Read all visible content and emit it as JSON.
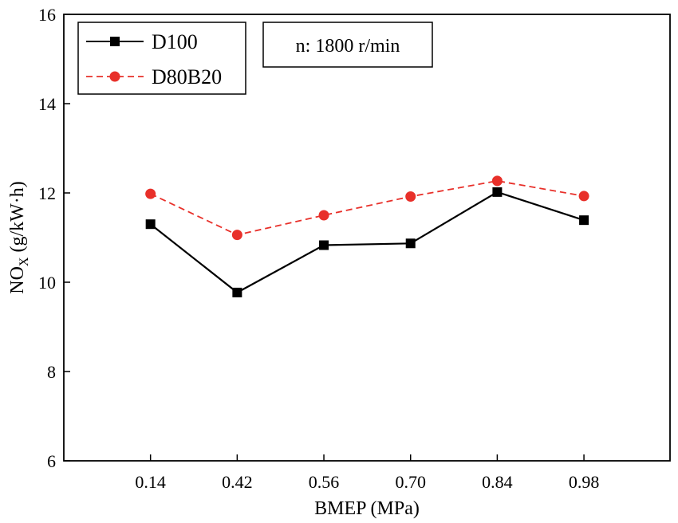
{
  "chart_data": {
    "type": "line",
    "title": "",
    "xlabel": "BMEP (MPa)",
    "ylabel_main": "NO",
    "ylabel_sub": "X",
    "ylabel_rest": " (g/kW·h)",
    "categories": [
      "0.14",
      "0.42",
      "0.56",
      "0.70",
      "0.84",
      "0.98"
    ],
    "x": [
      0.14,
      0.42,
      0.56,
      0.7,
      0.84,
      0.98
    ],
    "xlim": [
      0,
      1.8
    ],
    "ylim": [
      6,
      16
    ],
    "yticks": [
      "6",
      "8",
      "10",
      "12",
      "14",
      "16"
    ],
    "ytick_values": [
      6,
      8,
      10,
      12,
      14,
      16
    ],
    "grid": false,
    "legend_position": "top-left",
    "annotation": "n: 1800 r/min",
    "series": [
      {
        "name": "D100",
        "values": [
          11.3,
          9.77,
          10.83,
          10.87,
          12.02,
          11.39
        ],
        "color": "#000000",
        "marker": "square",
        "line_style": "solid"
      },
      {
        "name": "D80B20",
        "values": [
          11.98,
          11.06,
          11.5,
          11.92,
          12.27,
          11.93
        ],
        "color": "#e8302a",
        "marker": "circle",
        "line_style": "dashed"
      }
    ]
  }
}
